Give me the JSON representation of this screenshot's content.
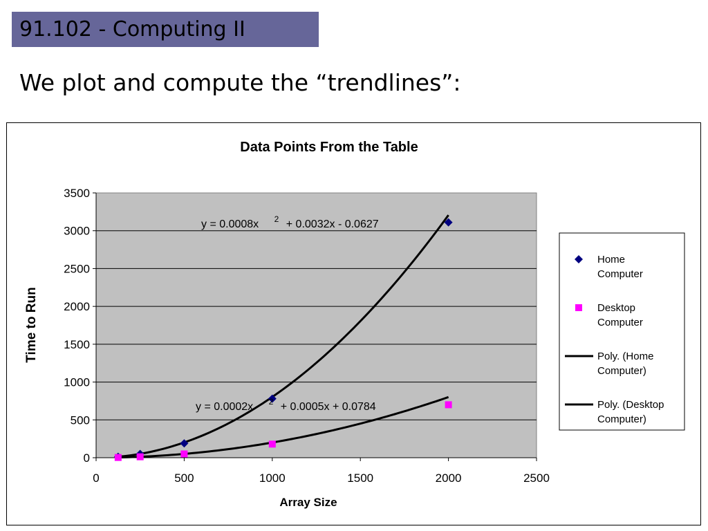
{
  "slide": {
    "title": "91.102 - Computing II",
    "subtitle": "We plot and compute the “trendlines”:"
  },
  "chart_data": {
    "type": "scatter",
    "title": "Data Points From the Table",
    "xlabel": "Array Size",
    "ylabel": "Time to Run",
    "xlim": [
      0,
      2500
    ],
    "ylim": [
      0,
      3500
    ],
    "x_ticks": [
      0,
      500,
      1000,
      1500,
      2000,
      2500
    ],
    "y_ticks": [
      0,
      500,
      1000,
      1500,
      2000,
      2500,
      3000,
      3500
    ],
    "x_tick_labels": [
      "0",
      "500",
      "1000",
      "1500",
      "2000",
      "2500"
    ],
    "y_tick_labels": [
      "0",
      "500",
      "1000",
      "1500",
      "2000",
      "2500",
      "3000",
      "3500"
    ],
    "grid": "horizontal",
    "plot_background": "#c0c0c0",
    "legend_position": "right",
    "series": [
      {
        "name": "Home Computer",
        "marker": "diamond",
        "color": "#000080",
        "x": [
          125,
          250,
          500,
          1000,
          2000
        ],
        "y": [
          12,
          50,
          190,
          780,
          3110
        ]
      },
      {
        "name": "Desktop Computer",
        "marker": "square",
        "color": "#ff00ff",
        "x": [
          125,
          250,
          500,
          1000,
          2000
        ],
        "y": [
          3,
          12,
          50,
          180,
          700
        ]
      }
    ],
    "trendlines": [
      {
        "name": "Poly. (Home Computer)",
        "type": "polynomial",
        "coefficients": [
          0.0008,
          0.0032,
          -0.0627
        ],
        "equation": "y = 0.0008x",
        "equation_exp": "2",
        "equation_rest": "+ 0.0032x - 0.0627",
        "color": "#000000"
      },
      {
        "name": "Poly. (Desktop Computer)",
        "type": "polynomial",
        "coefficients": [
          0.0002,
          0.0005,
          0.0784
        ],
        "equation": "y = 0.0002x",
        "equation_exp": "2",
        "equation_rest": "+ 0.0005x + 0.0784",
        "color": "#000000"
      }
    ],
    "legend": [
      {
        "line1": "Home",
        "line2": "Computer",
        "symbol": "diamond",
        "color": "#000080"
      },
      {
        "line1": "Desktop",
        "line2": "Computer",
        "symbol": "square",
        "color": "#ff00ff"
      },
      {
        "line1": "Poly. (Home",
        "line2": "Computer)",
        "symbol": "line",
        "color": "#000000"
      },
      {
        "line1": "Poly. (Desktop",
        "line2": "Computer)",
        "symbol": "line",
        "color": "#000000"
      }
    ]
  }
}
